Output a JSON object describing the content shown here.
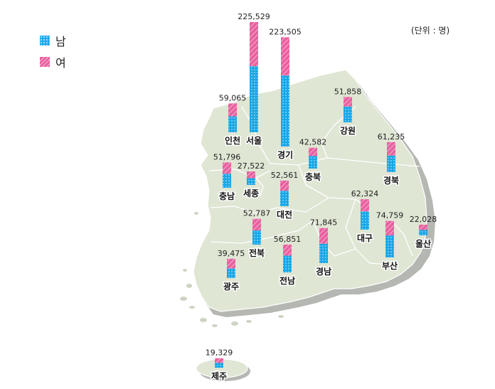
{
  "unit_note": "(단위 : 명)",
  "legend": {
    "male": "남",
    "female": "여"
  },
  "colors": {
    "male": "#19a6e6",
    "female": "#e8609f",
    "land": "#dfe6d4",
    "shadow": "#b5b7b2"
  },
  "chart_data": {
    "type": "bar",
    "stacked": true,
    "series": [
      {
        "name": "남"
      },
      {
        "name": "여"
      }
    ],
    "regions": [
      {
        "name": "서울",
        "total": 225529,
        "male_share": 0.6
      },
      {
        "name": "경기",
        "total": 223505,
        "male_share": 0.65
      },
      {
        "name": "인천",
        "total": 59065,
        "male_share": 0.55
      },
      {
        "name": "강원",
        "total": 51858,
        "male_share": 0.62
      },
      {
        "name": "충북",
        "total": 42582,
        "male_share": 0.6
      },
      {
        "name": "세종",
        "total": 27522,
        "male_share": 0.5
      },
      {
        "name": "충남",
        "total": 51796,
        "male_share": 0.55
      },
      {
        "name": "대전",
        "total": 52561,
        "male_share": 0.6
      },
      {
        "name": "경북",
        "total": 61235,
        "male_share": 0.55
      },
      {
        "name": "대구",
        "total": 62324,
        "male_share": 0.6
      },
      {
        "name": "전북",
        "total": 52787,
        "male_share": 0.55
      },
      {
        "name": "경남",
        "total": 71845,
        "male_share": 0.55
      },
      {
        "name": "부산",
        "total": 74759,
        "male_share": 0.6
      },
      {
        "name": "울산",
        "total": 22028,
        "male_share": 0.5
      },
      {
        "name": "광주",
        "total": 39475,
        "male_share": 0.5
      },
      {
        "name": "전남",
        "total": 56851,
        "male_share": 0.6
      },
      {
        "name": "제주",
        "total": 19329,
        "male_share": 0.5
      }
    ]
  }
}
